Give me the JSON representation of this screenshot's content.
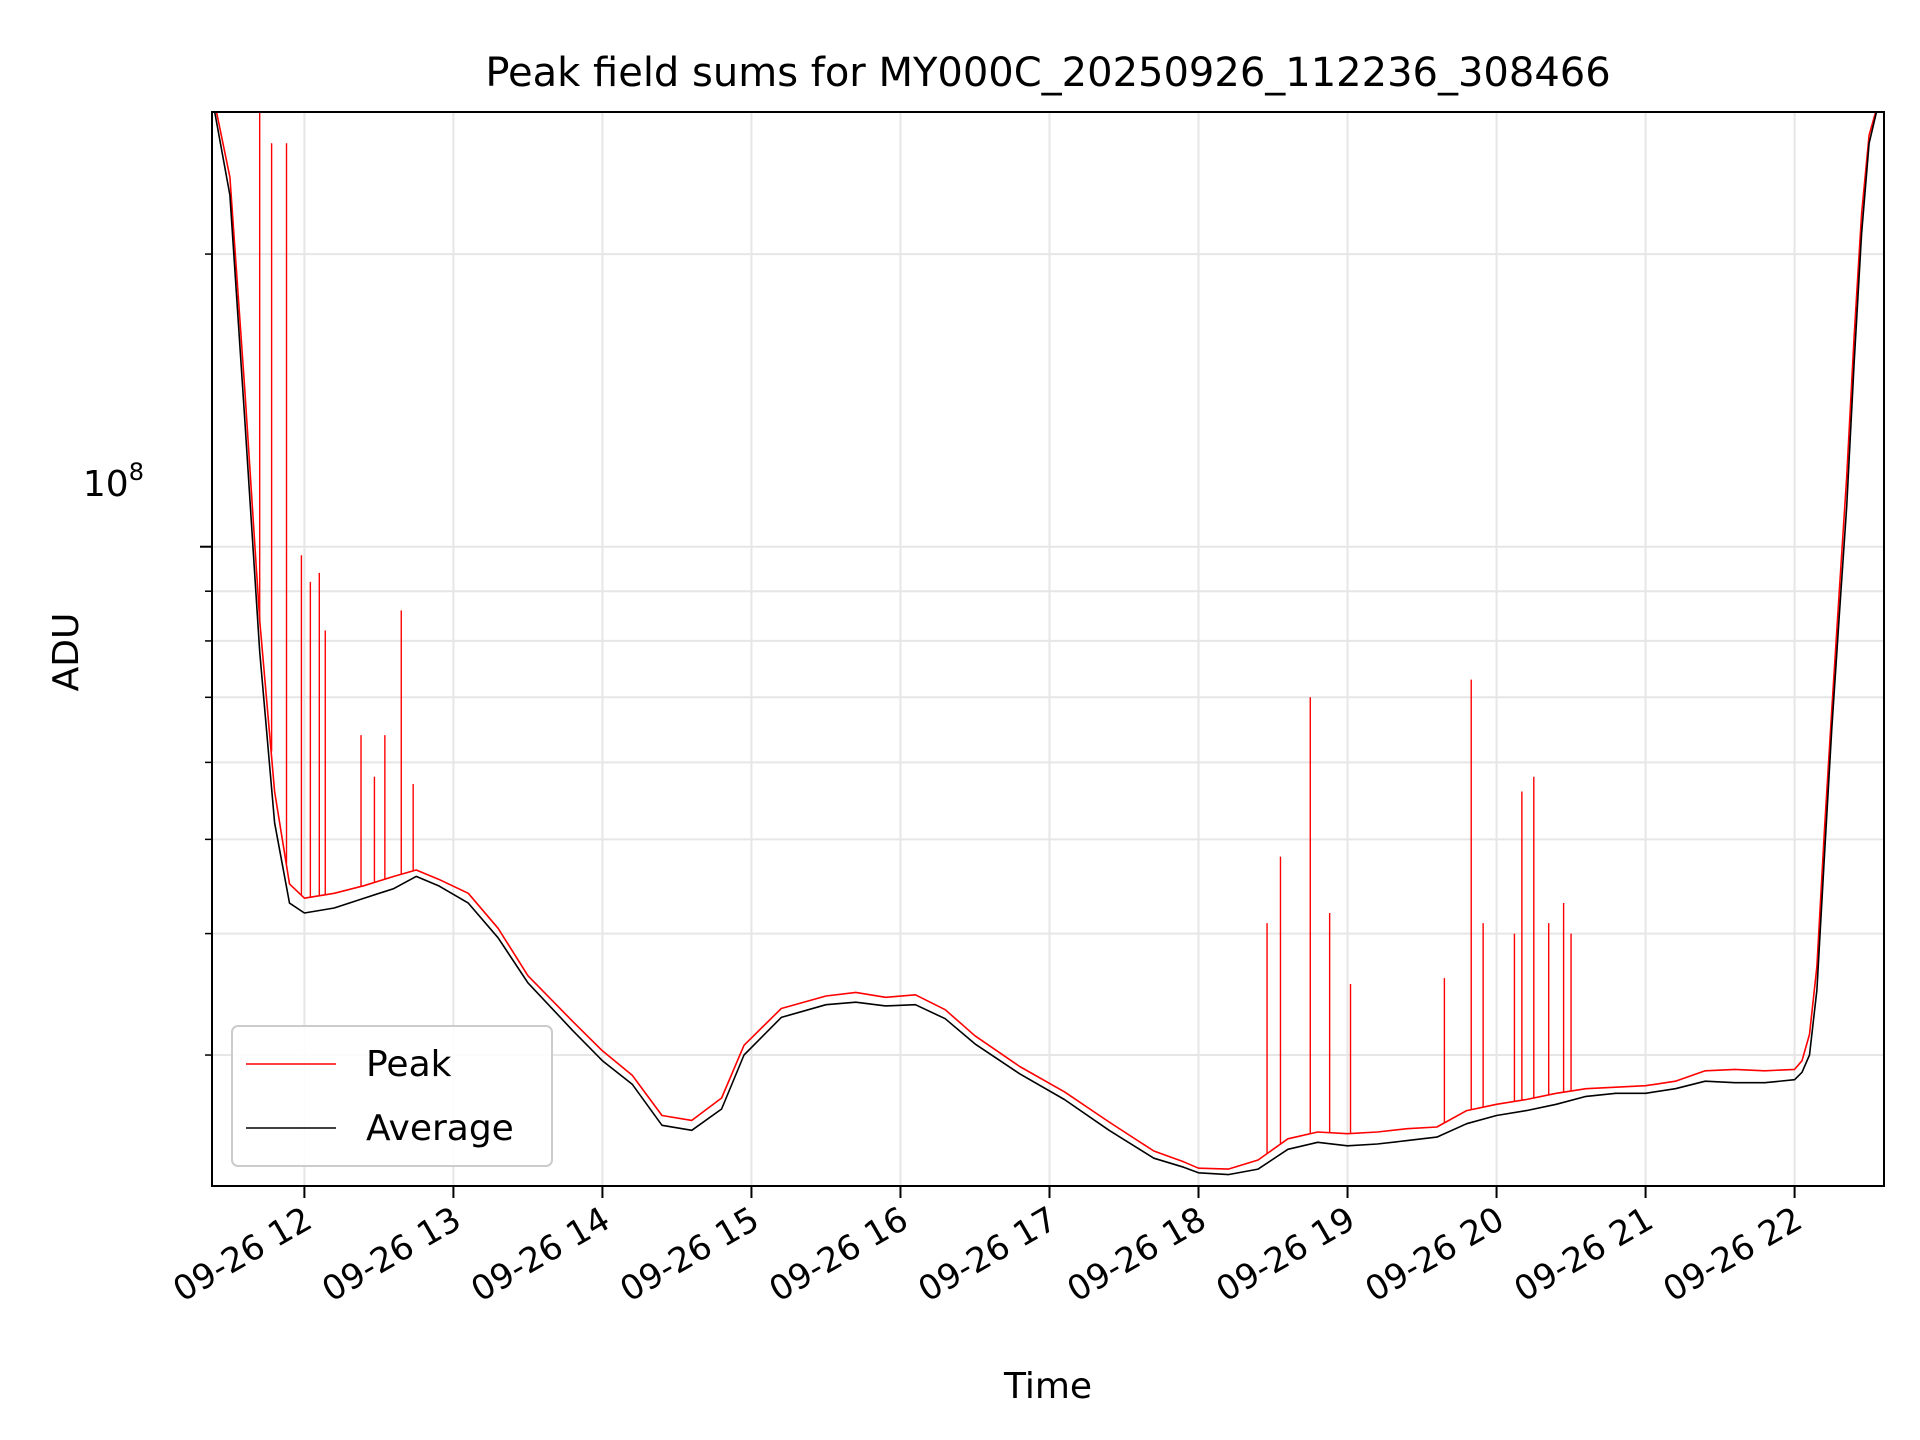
{
  "chart_data": {
    "type": "line",
    "title": "Peak field sums for MY000C_20250926_112236_308466",
    "xlabel": "Time",
    "ylabel": "ADU",
    "yscale": "log",
    "ylim": [
      22000000,
      280000000
    ],
    "xlim_hours": [
      11.38,
      22.6
    ],
    "x_ticks": [
      {
        "hour": 12,
        "label": "09-26 12"
      },
      {
        "hour": 13,
        "label": "09-26 13"
      },
      {
        "hour": 14,
        "label": "09-26 14"
      },
      {
        "hour": 15,
        "label": "09-26 15"
      },
      {
        "hour": 16,
        "label": "09-26 16"
      },
      {
        "hour": 17,
        "label": "09-26 17"
      },
      {
        "hour": 18,
        "label": "09-26 18"
      },
      {
        "hour": 19,
        "label": "09-26 19"
      },
      {
        "hour": 20,
        "label": "09-26 20"
      },
      {
        "hour": 21,
        "label": "09-26 21"
      },
      {
        "hour": 22,
        "label": "09-26 22"
      }
    ],
    "y_major_tick": {
      "value": 100000000,
      "label_base": "10",
      "label_exp": "8"
    },
    "grid": true,
    "legend": {
      "position": "lower-left",
      "entries": [
        {
          "name": "Peak",
          "color": "#ff0000"
        },
        {
          "name": "Average",
          "color": "#000000"
        }
      ]
    },
    "series": [
      {
        "name": "Average",
        "color": "#000000",
        "x": [
          11.38,
          11.5,
          11.6,
          11.7,
          11.8,
          11.9,
          12.0,
          12.2,
          12.4,
          12.6,
          12.75,
          12.9,
          13.1,
          13.3,
          13.5,
          13.8,
          14.0,
          14.2,
          14.4,
          14.6,
          14.8,
          14.95,
          15.2,
          15.5,
          15.7,
          15.9,
          16.1,
          16.3,
          16.5,
          16.8,
          17.1,
          17.4,
          17.7,
          17.9,
          18.0,
          18.2,
          18.4,
          18.6,
          18.8,
          19.0,
          19.2,
          19.4,
          19.6,
          19.8,
          20.0,
          20.2,
          20.4,
          20.6,
          20.8,
          21.0,
          21.2,
          21.4,
          21.6,
          21.8,
          22.0,
          22.05,
          22.1,
          22.15,
          22.2,
          22.25,
          22.3,
          22.35,
          22.4,
          22.45,
          22.5,
          22.55,
          22.6
        ],
        "values": [
          290000000,
          230000000,
          135000000,
          78000000,
          52000000,
          43000000,
          42000000,
          42500000,
          43500000,
          44500000,
          45800000,
          44800000,
          43000000,
          39600000,
          35600000,
          31800000,
          29600000,
          28000000,
          25400000,
          25100000,
          26400000,
          30000000,
          32800000,
          33800000,
          34000000,
          33700000,
          33800000,
          32700000,
          30800000,
          28700000,
          27000000,
          25100000,
          23500000,
          23000000,
          22700000,
          22600000,
          22900000,
          24000000,
          24400000,
          24200000,
          24300000,
          24500000,
          24700000,
          25500000,
          26000000,
          26300000,
          26700000,
          27200000,
          27400000,
          27400000,
          27700000,
          28200000,
          28100000,
          28100000,
          28300000,
          28800000,
          30000000,
          35000000,
          48000000,
          65000000,
          85000000,
          110000000,
          155000000,
          210000000,
          260000000,
          280000000,
          280000000
        ]
      },
      {
        "name": "Peak",
        "color": "#ff0000",
        "x": [
          11.38,
          11.5,
          11.6,
          11.7,
          11.8,
          11.9,
          12.0,
          12.2,
          12.4,
          12.6,
          12.75,
          12.9,
          13.1,
          13.3,
          13.5,
          13.8,
          14.0,
          14.2,
          14.4,
          14.6,
          14.8,
          14.95,
          15.2,
          15.5,
          15.7,
          15.9,
          16.1,
          16.3,
          16.5,
          16.8,
          17.1,
          17.4,
          17.7,
          17.9,
          18.0,
          18.2,
          18.4,
          18.6,
          18.8,
          19.0,
          19.2,
          19.4,
          19.6,
          19.8,
          20.0,
          20.2,
          20.4,
          20.6,
          20.8,
          21.0,
          21.2,
          21.4,
          21.6,
          21.8,
          22.0,
          22.05,
          22.1,
          22.15,
          22.2,
          22.25,
          22.3,
          22.35,
          22.4,
          22.45,
          22.5,
          22.55,
          22.6
        ],
        "values": [
          295000000,
          240000000,
          145000000,
          84000000,
          56000000,
          45000000,
          43500000,
          44000000,
          44800000,
          45800000,
          46500000,
          45500000,
          44000000,
          40500000,
          36200000,
          32500000,
          30300000,
          28600000,
          26000000,
          25700000,
          27100000,
          30700000,
          33500000,
          34500000,
          34800000,
          34400000,
          34600000,
          33400000,
          31400000,
          29200000,
          27500000,
          25600000,
          23900000,
          23300000,
          22950000,
          22900000,
          23400000,
          24600000,
          25000000,
          24900000,
          25000000,
          25200000,
          25300000,
          26300000,
          26700000,
          27000000,
          27400000,
          27700000,
          27800000,
          27900000,
          28200000,
          28900000,
          29000000,
          28900000,
          29000000,
          29600000,
          31500000,
          37000000,
          51000000,
          68000000,
          90000000,
          118000000,
          165000000,
          220000000,
          265000000,
          282000000,
          282000000
        ],
        "spikes": [
          {
            "x": 11.7,
            "value": 280000000
          },
          {
            "x": 11.78,
            "value": 260000000
          },
          {
            "x": 11.88,
            "value": 260000000
          },
          {
            "x": 11.98,
            "value": 98000000
          },
          {
            "x": 12.04,
            "value": 92000000
          },
          {
            "x": 12.1,
            "value": 94000000
          },
          {
            "x": 12.14,
            "value": 82000000
          },
          {
            "x": 12.38,
            "value": 64000000
          },
          {
            "x": 12.47,
            "value": 58000000
          },
          {
            "x": 12.54,
            "value": 64000000
          },
          {
            "x": 12.65,
            "value": 86000000
          },
          {
            "x": 12.73,
            "value": 57000000
          },
          {
            "x": 18.46,
            "value": 41000000
          },
          {
            "x": 18.55,
            "value": 48000000
          },
          {
            "x": 18.75,
            "value": 70000000
          },
          {
            "x": 18.88,
            "value": 42000000
          },
          {
            "x": 19.02,
            "value": 35500000
          },
          {
            "x": 19.65,
            "value": 36000000
          },
          {
            "x": 19.83,
            "value": 73000000
          },
          {
            "x": 19.91,
            "value": 41000000
          },
          {
            "x": 20.12,
            "value": 40000000
          },
          {
            "x": 20.17,
            "value": 56000000
          },
          {
            "x": 20.25,
            "value": 58000000
          },
          {
            "x": 20.35,
            "value": 41000000
          },
          {
            "x": 20.45,
            "value": 43000000
          },
          {
            "x": 20.5,
            "value": 40000000
          }
        ]
      }
    ]
  }
}
